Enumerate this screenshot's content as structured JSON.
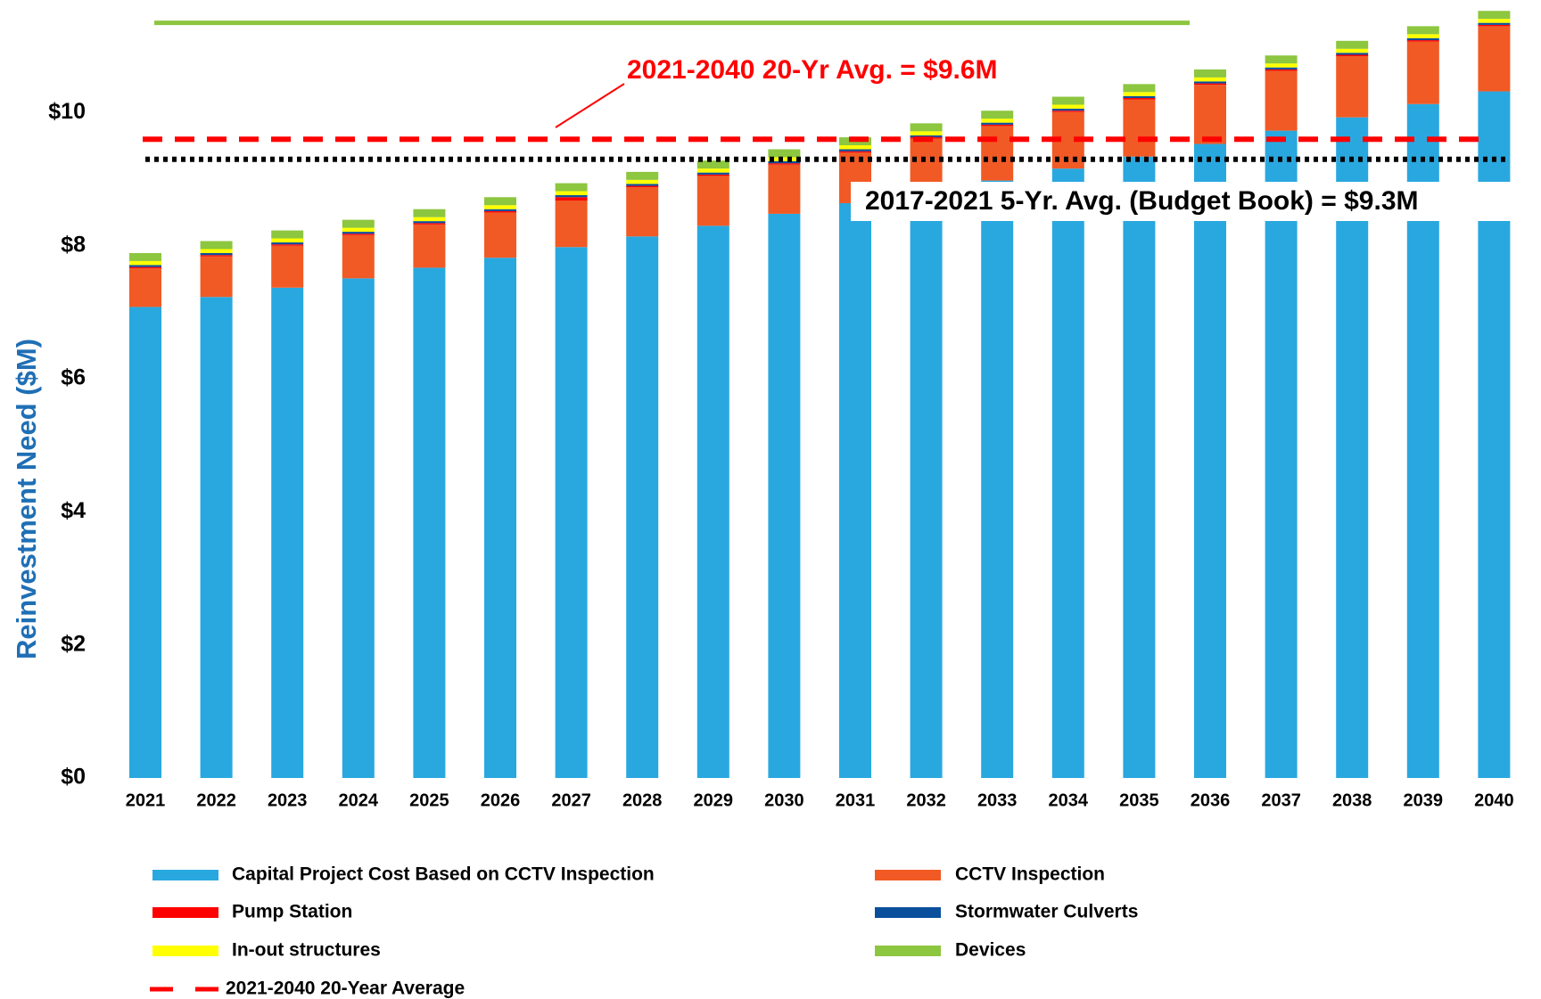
{
  "chart_data": {
    "type": "bar",
    "stacked": true,
    "y_label": "Reinvestment Need ($M)",
    "categories": [
      "2021",
      "2022",
      "2023",
      "2024",
      "2025",
      "2026",
      "2027",
      "2028",
      "2029",
      "2030",
      "2031",
      "2032",
      "2033",
      "2034",
      "2035",
      "2036",
      "2037",
      "2038",
      "2039",
      "2040"
    ],
    "series": [
      {
        "name": "Capital Project Cost Based on CCTV Inspection",
        "color": "#29a8e0",
        "values": [
          7.08,
          7.23,
          7.37,
          7.51,
          7.67,
          7.82,
          7.98,
          8.14,
          8.3,
          8.48,
          8.64,
          8.81,
          8.98,
          9.16,
          9.34,
          9.53,
          9.73,
          9.93,
          10.13,
          10.32
        ]
      },
      {
        "name": "CCTV Inspection",
        "color": "#f15a24",
        "values": [
          0.58,
          0.61,
          0.63,
          0.65,
          0.65,
          0.68,
          0.7,
          0.74,
          0.75,
          0.74,
          0.76,
          0.8,
          0.82,
          0.85,
          0.86,
          0.89,
          0.9,
          0.92,
          0.94,
          0.98
        ]
      },
      {
        "name": "Pump Station",
        "color": "#ff0000",
        "values": [
          0.02,
          0.02,
          0.02,
          0.02,
          0.02,
          0.02,
          0.05,
          0.02,
          0.02,
          0.02,
          0.02,
          0.02,
          0.02,
          0.02,
          0.02,
          0.02,
          0.02,
          0.02,
          0.02,
          0.02
        ]
      },
      {
        "name": "Stormwater Culverts",
        "color": "#0a4f9c",
        "values": [
          0.03,
          0.03,
          0.03,
          0.03,
          0.03,
          0.03,
          0.03,
          0.03,
          0.03,
          0.03,
          0.03,
          0.03,
          0.03,
          0.03,
          0.03,
          0.03,
          0.03,
          0.03,
          0.03,
          0.03
        ]
      },
      {
        "name": "In-out structures",
        "color": "#ffff00",
        "values": [
          0.06,
          0.06,
          0.06,
          0.06,
          0.06,
          0.06,
          0.06,
          0.06,
          0.06,
          0.06,
          0.06,
          0.06,
          0.06,
          0.06,
          0.06,
          0.06,
          0.06,
          0.06,
          0.06,
          0.06
        ]
      },
      {
        "name": "Devices",
        "color": "#8dc63f",
        "values": [
          0.12,
          0.12,
          0.12,
          0.12,
          0.12,
          0.12,
          0.12,
          0.12,
          0.12,
          0.12,
          0.12,
          0.12,
          0.12,
          0.12,
          0.12,
          0.12,
          0.12,
          0.12,
          0.12,
          0.12
        ]
      }
    ],
    "reference_lines": [
      {
        "name": "2021-2040 20-Year Average",
        "value": 9.6,
        "color": "#ff0000",
        "style": "dashed"
      },
      {
        "value": 9.3,
        "color": "#000000",
        "style": "dotted"
      },
      {
        "value": 11.35,
        "color": "#8dc63f",
        "style": "solid"
      }
    ],
    "annotations": [
      {
        "text": "2021-2040 20-Yr Avg. = $9.6M",
        "color": "#ff0000"
      },
      {
        "text": "2017-2021 5-Yr. Avg. (Budget Book) = $9.3M",
        "color": "#000000"
      }
    ],
    "ylim": [
      0,
      11.6
    ],
    "yticks": [
      {
        "value": 0,
        "label": "$0"
      },
      {
        "value": 2,
        "label": "$2"
      },
      {
        "value": 4,
        "label": "$4"
      },
      {
        "value": 6,
        "label": "$6"
      },
      {
        "value": 8,
        "label": "$8"
      },
      {
        "value": 10,
        "label": "$10"
      }
    ],
    "grid": false
  }
}
